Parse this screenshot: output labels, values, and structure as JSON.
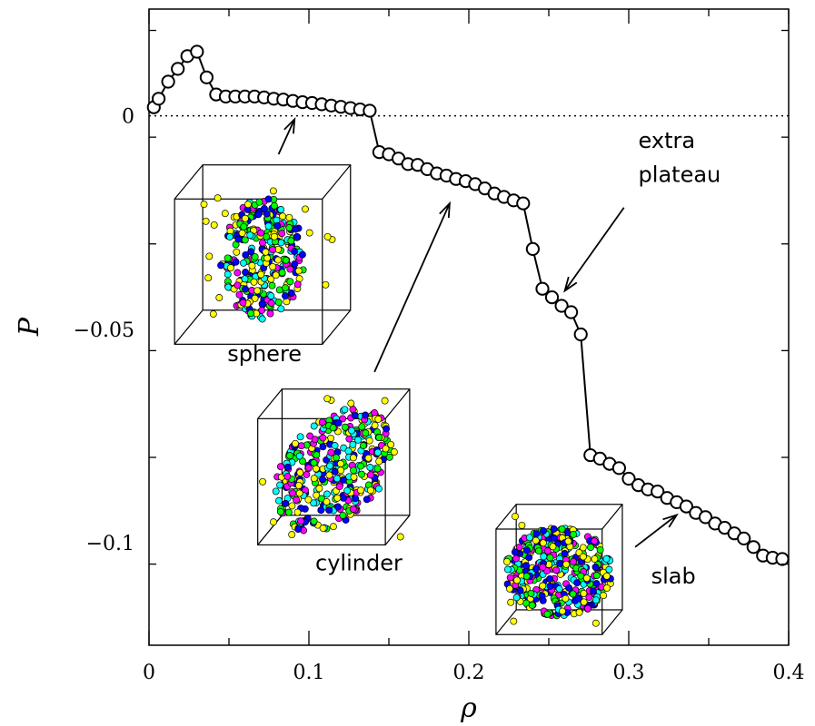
{
  "chart_data": {
    "type": "line",
    "xlabel": "ρ",
    "ylabel": "P",
    "xlim": [
      0,
      0.4
    ],
    "ylim": [
      -0.124,
      0.025
    ],
    "xticks": [
      0,
      0.1,
      0.2,
      0.3,
      0.4
    ],
    "xtick_labels": [
      "0",
      "0.1",
      "0.2",
      "0.3",
      "0.4"
    ],
    "yticks": [
      0,
      -0.05,
      -0.1
    ],
    "ytick_labels": [
      "0",
      "−0.05",
      "−0.1"
    ],
    "zero_line": 0,
    "series": [
      {
        "x": [
          0.003,
          0.006,
          0.012,
          0.018,
          0.024,
          0.03,
          0.036,
          0.042,
          0.048,
          0.054,
          0.06,
          0.066,
          0.072,
          0.078,
          0.084,
          0.09,
          0.096,
          0.102,
          0.108,
          0.114,
          0.12,
          0.126,
          0.132,
          0.138,
          0.144,
          0.15,
          0.156,
          0.162,
          0.168,
          0.174,
          0.18,
          0.186,
          0.192,
          0.198,
          0.204,
          0.21,
          0.216,
          0.222,
          0.228,
          0.234,
          0.24,
          0.246,
          0.252,
          0.258,
          0.264,
          0.27,
          0.276,
          0.282,
          0.288,
          0.294,
          0.3,
          0.306,
          0.312,
          0.318,
          0.324,
          0.33,
          0.336,
          0.342,
          0.348,
          0.354,
          0.36,
          0.366,
          0.372,
          0.378,
          0.384,
          0.39,
          0.396
        ],
        "y": [
          0.002,
          0.004,
          0.008,
          0.011,
          0.014,
          0.015,
          0.009,
          0.005,
          0.0045,
          0.0045,
          0.0045,
          0.0045,
          0.0043,
          0.004,
          0.0038,
          0.0035,
          0.0032,
          0.003,
          0.0027,
          0.0024,
          0.0021,
          0.0018,
          0.0015,
          0.0012,
          -0.0085,
          -0.009,
          -0.01,
          -0.0113,
          -0.0115,
          -0.0125,
          -0.0135,
          -0.014,
          -0.0148,
          -0.0153,
          -0.016,
          -0.017,
          -0.0182,
          -0.019,
          -0.0198,
          -0.0205,
          -0.0312,
          -0.0405,
          -0.0425,
          -0.0445,
          -0.046,
          -0.0512,
          -0.0795,
          -0.0803,
          -0.0815,
          -0.0825,
          -0.085,
          -0.0865,
          -0.0875,
          -0.088,
          -0.0895,
          -0.0905,
          -0.0915,
          -0.093,
          -0.094,
          -0.0955,
          -0.0965,
          -0.0978,
          -0.099,
          -0.101,
          -0.103,
          -0.1035,
          -0.1038
        ]
      }
    ],
    "annotations": [
      {
        "text": "extra",
        "x": 0.306,
        "y": -0.0075
      },
      {
        "text": "plateau",
        "x": 0.306,
        "y": -0.0155
      },
      {
        "text": "sphere",
        "x": 0.049,
        "y": -0.0575
      },
      {
        "text": "cylinder",
        "x": 0.104,
        "y": -0.1065
      },
      {
        "text": "slab",
        "x": 0.314,
        "y": -0.1095
      }
    ],
    "arrows": [
      {
        "x1": 0.081,
        "y1": -0.009,
        "x2": 0.091,
        "y2": -0.0008
      },
      {
        "x1": 0.141,
        "y1": -0.06,
        "x2": 0.188,
        "y2": -0.0205
      },
      {
        "x1": 0.297,
        "y1": -0.0215,
        "x2": 0.26,
        "y2": -0.041
      },
      {
        "x1": 0.304,
        "y1": -0.101,
        "x2": 0.33,
        "y2": -0.0935
      }
    ],
    "insets": [
      {
        "label": "sphere",
        "x0": 0.016,
        "y0": -0.0535,
        "x1": 0.126,
        "y1": -0.0115
      },
      {
        "label": "cylinder",
        "x0": 0.068,
        "y0": -0.1005,
        "x1": 0.163,
        "y1": -0.064
      },
      {
        "label": "slab",
        "x0": 0.217,
        "y0": -0.1215,
        "x1": 0.296,
        "y1": -0.091
      }
    ],
    "particle_colors": [
      "#ffff00",
      "#ff00ff",
      "#00ff00",
      "#00ffff",
      "#0000ff"
    ]
  }
}
